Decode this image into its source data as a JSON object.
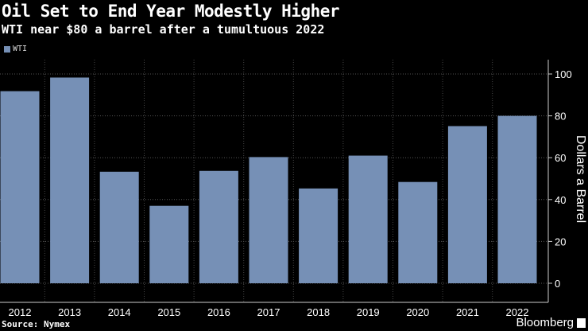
{
  "title": "Oil Set to End Year Modestly Higher",
  "subtitle": "WTI near $80 a barrel after a tumultuous 2022",
  "source": "Source: Nymex",
  "brand": "Bloomberg",
  "chart_data": {
    "type": "bar",
    "categories": [
      "2012",
      "2013",
      "2014",
      "2015",
      "2016",
      "2017",
      "2018",
      "2019",
      "2020",
      "2021",
      "2022"
    ],
    "series": [
      {
        "name": "WTI",
        "values": [
          91.8,
          98.3,
          53.3,
          37.0,
          53.7,
          60.3,
          45.3,
          61.0,
          48.4,
          75.1,
          80.0
        ],
        "color": "#7690b6"
      }
    ],
    "ylabel": "Dollars a Barrel",
    "ylim": [
      0,
      100
    ],
    "yticks": [
      "0",
      "20",
      "40",
      "60",
      "80",
      "100"
    ],
    "grid": true,
    "legend": "top-left",
    "y_axis_side": "right"
  }
}
